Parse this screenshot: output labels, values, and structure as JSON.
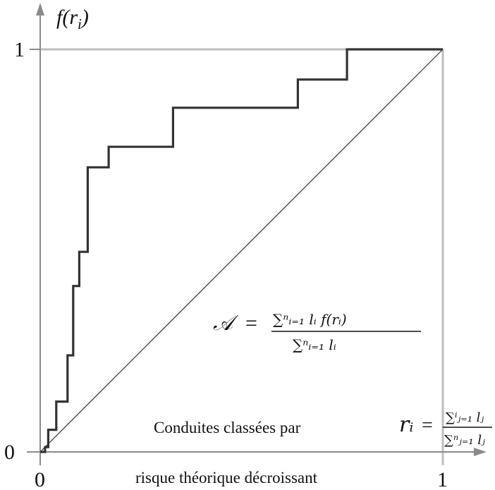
{
  "chart_data": {
    "type": "line",
    "xlim": [
      0,
      1
    ],
    "ylim": [
      0,
      1
    ],
    "grid": false,
    "y_axis_title": "f(r_i)",
    "x_ticks": [
      {
        "value": 0,
        "label": "0"
      },
      {
        "value": 1,
        "label": "1"
      }
    ],
    "y_ticks": [
      {
        "value": 0,
        "label": "0"
      },
      {
        "value": 1,
        "label": "1"
      }
    ],
    "series": [
      {
        "kind": "step",
        "color": "#333333",
        "points": [
          [
            0.0,
            0.0
          ],
          [
            0.012,
            0.0
          ],
          [
            0.012,
            0.012
          ],
          [
            0.02,
            0.012
          ],
          [
            0.02,
            0.055
          ],
          [
            0.04,
            0.055
          ],
          [
            0.04,
            0.125
          ],
          [
            0.068,
            0.125
          ],
          [
            0.068,
            0.24
          ],
          [
            0.082,
            0.24
          ],
          [
            0.082,
            0.412
          ],
          [
            0.097,
            0.412
          ],
          [
            0.097,
            0.497
          ],
          [
            0.118,
            0.497
          ],
          [
            0.118,
            0.707
          ],
          [
            0.17,
            0.707
          ],
          [
            0.17,
            0.758
          ],
          [
            0.33,
            0.758
          ],
          [
            0.33,
            0.855
          ],
          [
            0.64,
            0.855
          ],
          [
            0.64,
            0.925
          ],
          [
            0.762,
            0.925
          ],
          [
            0.762,
            1.0
          ],
          [
            1.0,
            1.0
          ]
        ]
      },
      {
        "kind": "diagonal",
        "color": "#333333",
        "points": [
          [
            0,
            0
          ],
          [
            1,
            1
          ]
        ]
      }
    ],
    "annotations": {
      "area_symbol": "𝒜",
      "equals": "=",
      "area_numerator": "∑ⁿᵢ₌₁ lᵢ f(rᵢ)",
      "area_denominator": "∑ⁿᵢ₌₁ lᵢ",
      "x_axis_title": "rᵢ",
      "x_numerator": "∑ⁱⱼ₌₁ lⱼ",
      "x_denominator": "∑ⁿⱼ₌₁ lⱼ",
      "caption_line1": "Conduites classées par",
      "caption_line2": "risque théorique décroissant"
    },
    "colors": {
      "axis": "#8a8a8a",
      "frame": "#bdbdbd",
      "curve": "#333333",
      "text": "#111111"
    }
  }
}
